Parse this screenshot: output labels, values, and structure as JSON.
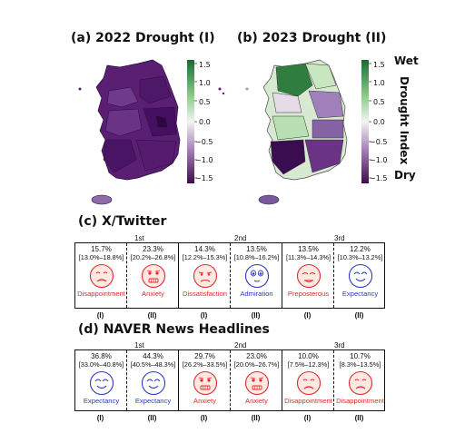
{
  "maps": {
    "panel_a_title": "(a) 2022 Drought (I)",
    "panel_b_title": "(b) 2023 Drought (II)",
    "colorbar_ticks": [
      "1.5",
      "1.0",
      "0.5",
      "0.0",
      "−0.5",
      "−1.0",
      "−1.5"
    ],
    "wet_label": "Wet",
    "dry_label": "Dry",
    "index_label": "Drought Index",
    "colors": {
      "wet": "#1b6b34",
      "neutral": "#f4f2f4",
      "dry": "#3d0b4f"
    }
  },
  "twitter": {
    "title": "(c) X/Twitter",
    "ranks": [
      "1st",
      "2nd",
      "3rd"
    ],
    "cells": [
      {
        "pct": "15.7%",
        "ci": "[13.0%–18.8%]",
        "emotion": "Disappointment",
        "group": "(I)",
        "color": "red",
        "face": "disappointment"
      },
      {
        "pct": "23.3%",
        "ci": "[20.2%–26.8%]",
        "emotion": "Anxiety",
        "group": "(II)",
        "color": "red",
        "face": "anxiety"
      },
      {
        "pct": "14.3%",
        "ci": "[12.2%–15.3%]",
        "emotion": "Dissatisfaction",
        "group": "(I)",
        "color": "red",
        "face": "dissatisfaction"
      },
      {
        "pct": "13.5%",
        "ci": "[10.8%–16.2%]",
        "emotion": "Admiration",
        "group": "(II)",
        "color": "blue",
        "face": "admiration"
      },
      {
        "pct": "13.5%",
        "ci": "[11.3%–14.3%]",
        "emotion": "Preposterous",
        "group": "(I)",
        "color": "red",
        "face": "preposterous"
      },
      {
        "pct": "12.2%",
        "ci": "[10.3%–13.2%]",
        "emotion": "Expectancy",
        "group": "(II)",
        "color": "blue",
        "face": "expectancy"
      }
    ]
  },
  "naver": {
    "title": "(d) NAVER News Headlines",
    "ranks": [
      "1st",
      "2nd",
      "3rd"
    ],
    "cells": [
      {
        "pct": "36.8%",
        "ci": "[33.0%–40.8%]",
        "emotion": "Expectancy",
        "group": "(I)",
        "color": "blue",
        "face": "expectancy"
      },
      {
        "pct": "44.3%",
        "ci": "[40.5%–48.3%]",
        "emotion": "Expectancy",
        "group": "(II)",
        "color": "blue",
        "face": "expectancy"
      },
      {
        "pct": "29.7%",
        "ci": "[26.2%–33.5%]",
        "emotion": "Anxiety",
        "group": "(I)",
        "color": "red",
        "face": "anxiety"
      },
      {
        "pct": "23.0%",
        "ci": "[20.0%–26.7%]",
        "emotion": "Anxiety",
        "group": "(II)",
        "color": "red",
        "face": "anxiety"
      },
      {
        "pct": "10.0%",
        "ci": "[7.5%–12.3%]",
        "emotion": "Disappointment",
        "group": "(I)",
        "color": "red",
        "face": "disappointment"
      },
      {
        "pct": "10.7%",
        "ci": "[8.3%–13.5%]",
        "emotion": "Disappointment",
        "group": "(II)",
        "color": "red",
        "face": "disappointment"
      }
    ]
  }
}
